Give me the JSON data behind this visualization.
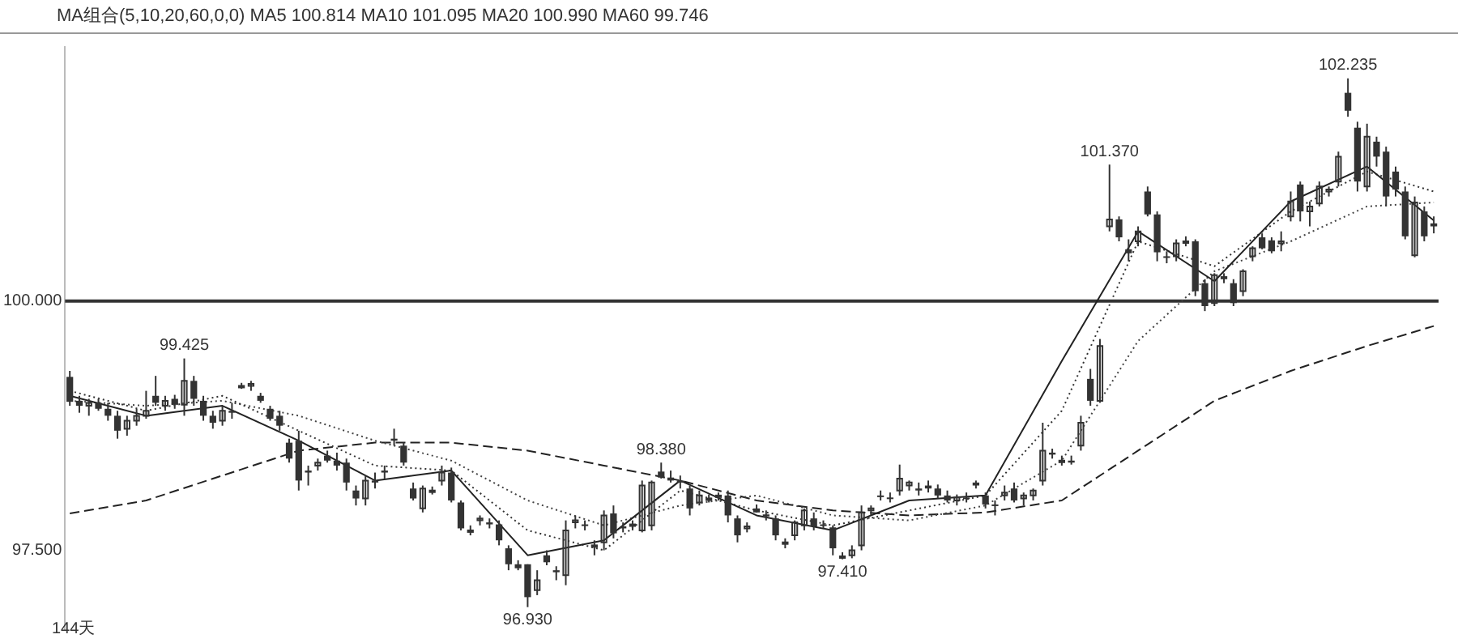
{
  "chart_data": {
    "type": "candlestick",
    "subtitle": "MA组合(5,10,20,60,0,0)  MA5 100.814  MA10 101.095  MA20 100.990  MA60 99.746",
    "color": "#333333",
    "categories": [
      null,
      null,
      null,
      null,
      null,
      null,
      null,
      null,
      null,
      null,
      null,
      null,
      null,
      null,
      null,
      null,
      null,
      null,
      null,
      null,
      null,
      null,
      null,
      null,
      null,
      null,
      null,
      null,
      null,
      null,
      null,
      null,
      null,
      null,
      null,
      null,
      null,
      null,
      null,
      null,
      null,
      null,
      null,
      null,
      null,
      null,
      null,
      null,
      null,
      null,
      null,
      null,
      null,
      null,
      null,
      null,
      null,
      null,
      null,
      null,
      null,
      null,
      null,
      null,
      null,
      null,
      null,
      null,
      null,
      null,
      null,
      null,
      null,
      null,
      null,
      null,
      null,
      null,
      null,
      null,
      null,
      null,
      null,
      null,
      null,
      null,
      null,
      null,
      null,
      null,
      null,
      null,
      null,
      null,
      null,
      null,
      null,
      null,
      null,
      null,
      null,
      null,
      null,
      null,
      null,
      null,
      null,
      null,
      null,
      null,
      null,
      null,
      null,
      null,
      null,
      null,
      null,
      null,
      null,
      null,
      null,
      null,
      null,
      null,
      null,
      null,
      null,
      null,
      null,
      null,
      null,
      null,
      null,
      null,
      null,
      null,
      null,
      null,
      null,
      null,
      null,
      null,
      null,
      null
    ],
    "ohlc": [
      [
        99.24,
        99.3,
        98.95,
        98.99
      ],
      [
        99.0,
        99.05,
        98.88,
        98.95
      ],
      [
        98.95,
        99.02,
        98.85,
        98.98
      ],
      [
        98.98,
        99.02,
        98.9,
        98.92
      ],
      [
        98.92,
        98.98,
        98.8,
        98.85
      ],
      [
        98.85,
        98.9,
        98.62,
        98.7
      ],
      [
        98.72,
        98.85,
        98.65,
        98.8
      ],
      [
        98.8,
        98.92,
        98.75,
        98.85
      ],
      [
        98.85,
        99.1,
        98.82,
        98.9
      ],
      [
        99.05,
        99.25,
        98.95,
        98.98
      ],
      [
        98.95,
        99.05,
        98.9,
        99.0
      ],
      [
        99.02,
        99.06,
        98.92,
        98.96
      ],
      [
        98.96,
        99.425,
        98.85,
        99.2
      ],
      [
        99.2,
        99.25,
        98.95,
        99.02
      ],
      [
        99.0,
        99.05,
        98.8,
        98.85
      ],
      [
        98.85,
        98.9,
        98.72,
        98.78
      ],
      [
        98.8,
        98.95,
        98.75,
        98.9
      ],
      [
        98.9,
        98.98,
        98.82,
        98.88
      ],
      [
        99.15,
        99.18,
        99.12,
        99.15
      ],
      [
        99.15,
        99.2,
        99.1,
        99.17
      ],
      [
        99.05,
        99.08,
        98.98,
        99.0
      ],
      [
        98.92,
        98.95,
        98.8,
        98.82
      ],
      [
        98.85,
        98.9,
        98.7,
        98.75
      ],
      [
        98.58,
        98.62,
        98.38,
        98.42
      ],
      [
        98.6,
        98.7,
        98.1,
        98.2
      ],
      [
        98.3,
        98.35,
        98.15,
        98.28
      ],
      [
        98.35,
        98.42,
        98.3,
        98.38
      ],
      [
        98.45,
        98.5,
        98.38,
        98.4
      ],
      [
        98.4,
        98.48,
        98.3,
        98.35
      ],
      [
        98.38,
        98.42,
        98.1,
        98.18
      ],
      [
        98.1,
        98.15,
        97.95,
        98.02
      ],
      [
        98.02,
        98.25,
        97.95,
        98.2
      ],
      [
        98.2,
        98.28,
        98.12,
        98.18
      ],
      [
        98.3,
        98.35,
        98.22,
        98.28
      ],
      [
        98.62,
        98.72,
        98.55,
        98.6
      ],
      [
        98.55,
        98.58,
        98.35,
        98.38
      ],
      [
        98.12,
        98.18,
        98.0,
        98.02
      ],
      [
        97.92,
        98.15,
        97.88,
        98.12
      ],
      [
        98.1,
        98.14,
        98.06,
        98.1
      ],
      [
        98.2,
        98.35,
        98.15,
        98.28
      ],
      [
        98.28,
        98.33,
        97.98,
        98.0
      ],
      [
        97.98,
        98.0,
        97.7,
        97.72
      ],
      [
        97.7,
        97.75,
        97.65,
        97.7
      ],
      [
        97.8,
        97.85,
        97.75,
        97.82
      ],
      [
        97.78,
        97.82,
        97.72,
        97.76
      ],
      [
        97.76,
        97.8,
        97.55,
        97.6
      ],
      [
        97.52,
        97.55,
        97.3,
        97.36
      ],
      [
        97.36,
        97.4,
        97.3,
        97.32
      ],
      [
        97.36,
        97.36,
        96.93,
        97.03
      ],
      [
        97.1,
        97.3,
        97.05,
        97.2
      ],
      [
        97.45,
        97.5,
        97.35,
        97.38
      ],
      [
        97.3,
        97.34,
        97.2,
        97.28
      ],
      [
        97.25,
        97.8,
        97.15,
        97.7
      ],
      [
        97.78,
        97.85,
        97.72,
        97.8
      ],
      [
        97.76,
        97.8,
        97.7,
        97.75
      ],
      [
        97.55,
        97.6,
        97.45,
        97.55
      ],
      [
        97.58,
        97.9,
        97.5,
        97.85
      ],
      [
        97.87,
        97.95,
        97.62,
        97.67
      ],
      [
        97.74,
        97.78,
        97.68,
        97.72
      ],
      [
        97.76,
        97.8,
        97.7,
        97.76
      ],
      [
        97.7,
        98.2,
        97.68,
        98.15
      ],
      [
        97.75,
        98.2,
        97.7,
        98.18
      ],
      [
        98.29,
        98.38,
        98.22,
        98.23
      ],
      [
        98.23,
        98.3,
        98.18,
        98.2
      ],
      [
        98.2,
        98.25,
        98.12,
        98.18
      ],
      [
        98.12,
        98.15,
        97.85,
        97.92
      ],
      [
        97.98,
        98.1,
        97.95,
        98.05
      ],
      [
        98.02,
        98.06,
        97.98,
        98.02
      ],
      [
        98.04,
        98.08,
        98.0,
        98.05
      ],
      [
        98.05,
        98.1,
        97.78,
        97.85
      ],
      [
        97.82,
        97.85,
        97.58,
        97.65
      ],
      [
        97.72,
        97.78,
        97.68,
        97.74
      ],
      [
        97.92,
        97.96,
        97.88,
        97.88
      ],
      [
        97.86,
        97.9,
        97.8,
        97.84
      ],
      [
        97.82,
        97.85,
        97.6,
        97.65
      ],
      [
        97.58,
        97.62,
        97.52,
        97.58
      ],
      [
        97.65,
        97.8,
        97.6,
        97.78
      ],
      [
        97.75,
        97.92,
        97.7,
        97.9
      ],
      [
        97.82,
        97.88,
        97.7,
        97.74
      ],
      [
        97.76,
        97.8,
        97.72,
        97.75
      ],
      [
        97.73,
        97.75,
        97.45,
        97.52
      ],
      [
        97.44,
        97.48,
        97.41,
        97.44
      ],
      [
        97.45,
        97.55,
        97.42,
        97.5
      ],
      [
        97.55,
        97.95,
        97.5,
        97.88
      ],
      [
        97.9,
        97.95,
        97.85,
        97.92
      ],
      [
        98.05,
        98.1,
        98.0,
        98.04
      ],
      [
        98.03,
        98.08,
        97.98,
        98.02
      ],
      [
        98.1,
        98.36,
        98.05,
        98.22
      ],
      [
        98.15,
        98.2,
        98.1,
        98.18
      ],
      [
        98.12,
        98.18,
        98.05,
        98.1
      ],
      [
        98.15,
        98.2,
        98.08,
        98.12
      ],
      [
        98.12,
        98.16,
        98.02,
        98.05
      ],
      [
        98.05,
        98.1,
        97.98,
        98.0
      ],
      [
        98.0,
        98.06,
        97.95,
        98.03
      ],
      [
        98.03,
        98.08,
        97.98,
        98.02
      ],
      [
        98.18,
        98.2,
        98.12,
        98.15
      ],
      [
        98.05,
        98.08,
        97.92,
        97.96
      ],
      [
        97.96,
        98.0,
        97.85,
        97.95
      ],
      [
        98.05,
        98.15,
        98.0,
        98.08
      ],
      [
        98.12,
        98.18,
        97.98,
        98.0
      ],
      [
        98.02,
        98.08,
        97.95,
        98.05
      ],
      [
        98.05,
        98.12,
        98.0,
        98.1
      ],
      [
        98.2,
        98.78,
        98.15,
        98.5
      ],
      [
        98.48,
        98.52,
        98.42,
        98.46
      ],
      [
        98.4,
        98.45,
        98.35,
        98.4
      ],
      [
        98.4,
        98.45,
        98.36,
        98.38
      ],
      [
        98.55,
        98.85,
        98.5,
        98.78
      ],
      [
        99.22,
        99.32,
        98.95,
        99.0
      ],
      [
        99.0,
        99.62,
        98.98,
        99.55
      ],
      [
        100.75,
        101.37,
        100.7,
        100.82
      ],
      [
        100.82,
        100.85,
        100.6,
        100.64
      ],
      [
        100.52,
        100.62,
        100.4,
        100.48
      ],
      [
        100.6,
        100.75,
        100.55,
        100.7
      ],
      [
        101.1,
        101.15,
        100.85,
        100.87
      ],
      [
        100.87,
        100.9,
        100.4,
        100.49
      ],
      [
        100.45,
        100.5,
        100.38,
        100.44
      ],
      [
        100.45,
        100.62,
        100.4,
        100.58
      ],
      [
        100.6,
        100.65,
        100.55,
        100.6
      ],
      [
        100.6,
        100.62,
        100.05,
        100.1
      ],
      [
        100.18,
        100.22,
        99.9,
        99.95
      ],
      [
        99.98,
        100.28,
        99.95,
        100.26
      ],
      [
        100.25,
        100.28,
        100.18,
        100.22
      ],
      [
        100.18,
        100.22,
        99.95,
        99.98
      ],
      [
        100.1,
        100.32,
        100.05,
        100.3
      ],
      [
        100.45,
        100.55,
        100.4,
        100.53
      ],
      [
        100.64,
        100.68,
        100.52,
        100.53
      ],
      [
        100.61,
        100.64,
        100.48,
        100.5
      ],
      [
        100.58,
        100.7,
        100.5,
        100.6
      ],
      [
        100.85,
        101.1,
        100.8,
        101.0
      ],
      [
        101.17,
        101.2,
        100.8,
        100.9
      ],
      [
        100.9,
        101.0,
        100.75,
        100.95
      ],
      [
        100.98,
        101.2,
        100.95,
        101.15
      ],
      [
        101.1,
        101.15,
        101.05,
        101.12
      ],
      [
        101.2,
        101.5,
        101.15,
        101.45
      ],
      [
        102.09,
        102.235,
        101.85,
        101.91
      ],
      [
        101.74,
        101.8,
        101.1,
        101.2
      ],
      [
        101.15,
        101.78,
        101.1,
        101.65
      ],
      [
        101.6,
        101.65,
        101.35,
        101.45
      ],
      [
        101.5,
        101.55,
        100.95,
        101.05
      ],
      [
        101.3,
        101.35,
        101.05,
        101.12
      ],
      [
        101.1,
        101.15,
        100.62,
        100.65
      ],
      [
        100.46,
        101.05,
        100.44,
        100.99
      ],
      [
        100.9,
        100.95,
        100.6,
        100.65
      ],
      [
        100.78,
        100.85,
        100.68,
        100.75
      ]
    ],
    "series": [
      {
        "type": "line",
        "color": "#222222",
        "line_style": "solid",
        "values": [
          99.05,
          null,
          null,
          null,
          null,
          null,
          null,
          null,
          98.85,
          null,
          null,
          null,
          null,
          null,
          null,
          null,
          98.95,
          null,
          null,
          null,
          null,
          null,
          null,
          null,
          98.6,
          null,
          null,
          null,
          null,
          null,
          null,
          null,
          98.2,
          null,
          null,
          null,
          null,
          null,
          null,
          null,
          98.3,
          null,
          null,
          null,
          null,
          null,
          null,
          null,
          97.45,
          null,
          null,
          null,
          null,
          null,
          null,
          null,
          97.6,
          null,
          null,
          null,
          null,
          null,
          null,
          null,
          98.2,
          null,
          null,
          null,
          null,
          null,
          null,
          null,
          97.85,
          null,
          null,
          null,
          null,
          null,
          null,
          null,
          97.7,
          null,
          null,
          null,
          null,
          null,
          null,
          null,
          98.0,
          null,
          null,
          null,
          null,
          null,
          null,
          null,
          98.05,
          null,
          null,
          null,
          null,
          null,
          null,
          null,
          99.4,
          null,
          null,
          null,
          null,
          null,
          null,
          null,
          100.7,
          null,
          null,
          null,
          null,
          null,
          null,
          null,
          100.2,
          null,
          null,
          null,
          null,
          null,
          null,
          null,
          101.0,
          null,
          null,
          null,
          null,
          null,
          null,
          null,
          101.35,
          null,
          null,
          null,
          null,
          null,
          null,
          100.81
        ]
      },
      {
        "type": "line",
        "color": "#333333",
        "line_style": "dotted",
        "values": [
          99.1,
          null,
          null,
          null,
          null,
          null,
          null,
          null,
          98.9,
          null,
          null,
          null,
          null,
          null,
          null,
          null,
          99.05,
          null,
          null,
          null,
          null,
          null,
          null,
          null,
          98.7,
          null,
          null,
          null,
          null,
          null,
          null,
          null,
          98.35,
          null,
          null,
          null,
          null,
          null,
          null,
          null,
          98.3,
          null,
          null,
          null,
          null,
          null,
          null,
          null,
          97.7,
          null,
          null,
          null,
          null,
          null,
          null,
          null,
          97.5,
          null,
          null,
          null,
          null,
          null,
          null,
          null,
          98.1,
          null,
          null,
          null,
          null,
          null,
          null,
          null,
          97.9,
          null,
          null,
          null,
          null,
          null,
          null,
          null,
          97.75,
          null,
          null,
          null,
          null,
          null,
          null,
          null,
          97.9,
          null,
          null,
          null,
          null,
          null,
          null,
          null,
          98.05,
          null,
          null,
          null,
          null,
          null,
          null,
          null,
          98.9,
          null,
          null,
          null,
          null,
          null,
          null,
          null,
          100.6,
          null,
          null,
          null,
          null,
          null,
          null,
          null,
          100.35,
          null,
          null,
          null,
          null,
          null,
          null,
          null,
          100.9,
          null,
          null,
          null,
          null,
          null,
          null,
          null,
          101.3,
          null,
          null,
          null,
          null,
          null,
          null,
          101.1
        ]
      },
      {
        "type": "line",
        "color": "#444444",
        "line_style": "dotted",
        "values": [
          99.0,
          null,
          null,
          null,
          null,
          null,
          null,
          null,
          98.95,
          null,
          null,
          null,
          null,
          null,
          null,
          null,
          99.0,
          null,
          null,
          null,
          null,
          null,
          null,
          null,
          98.85,
          null,
          null,
          null,
          null,
          null,
          null,
          null,
          98.6,
          null,
          null,
          null,
          null,
          null,
          null,
          null,
          98.4,
          null,
          null,
          null,
          null,
          null,
          null,
          null,
          98.0,
          null,
          null,
          null,
          null,
          null,
          null,
          null,
          97.75,
          null,
          null,
          null,
          null,
          null,
          null,
          null,
          97.95,
          null,
          null,
          null,
          null,
          null,
          null,
          null,
          98.05,
          null,
          null,
          null,
          null,
          null,
          null,
          null,
          97.85,
          null,
          null,
          null,
          null,
          null,
          null,
          null,
          97.8,
          null,
          null,
          null,
          null,
          null,
          null,
          null,
          97.95,
          null,
          null,
          null,
          null,
          null,
          null,
          null,
          98.4,
          null,
          null,
          null,
          null,
          null,
          null,
          null,
          99.6,
          null,
          null,
          null,
          null,
          null,
          null,
          null,
          100.3,
          null,
          null,
          null,
          null,
          null,
          null,
          null,
          100.6,
          null,
          null,
          null,
          null,
          null,
          null,
          null,
          100.95,
          null,
          null,
          null,
          null,
          null,
          null,
          100.99
        ]
      },
      {
        "type": "line",
        "color": "#222222",
        "line_style": "dashed",
        "values": [
          97.87,
          null,
          null,
          null,
          null,
          null,
          null,
          null,
          98.0,
          null,
          null,
          null,
          null,
          null,
          null,
          null,
          98.25,
          null,
          null,
          null,
          null,
          null,
          null,
          null,
          98.5,
          null,
          null,
          null,
          null,
          null,
          null,
          null,
          98.58,
          null,
          null,
          null,
          null,
          null,
          null,
          null,
          98.58,
          null,
          null,
          null,
          null,
          null,
          null,
          null,
          98.5,
          null,
          null,
          null,
          null,
          null,
          null,
          null,
          98.35,
          null,
          null,
          null,
          null,
          null,
          null,
          null,
          98.2,
          null,
          null,
          null,
          null,
          null,
          null,
          null,
          98.0,
          null,
          null,
          null,
          null,
          null,
          null,
          null,
          97.9,
          null,
          null,
          null,
          null,
          null,
          null,
          null,
          97.85,
          null,
          null,
          null,
          null,
          null,
          null,
          null,
          97.88,
          null,
          null,
          null,
          null,
          null,
          null,
          null,
          98.0,
          null,
          null,
          null,
          null,
          null,
          null,
          null,
          98.5,
          null,
          null,
          null,
          null,
          null,
          null,
          null,
          99.0,
          null,
          null,
          null,
          null,
          null,
          null,
          null,
          99.3,
          null,
          null,
          null,
          null,
          null,
          null,
          null,
          99.55,
          null,
          null,
          null,
          null,
          null,
          null,
          99.75
        ]
      }
    ],
    "ylim": [
      96.7,
      102.55
    ],
    "yticks": [
      {
        "value": 97.5,
        "label": "97.500"
      },
      {
        "value": 100,
        "label": "100.000"
      }
    ],
    "tick_labels": "y",
    "grid": false,
    "legend": false,
    "marker": "none",
    "ref_lines": [
      {
        "axis": "y",
        "value": 100,
        "color": "#333333"
      }
    ],
    "annotations": [
      {
        "text": "99.425",
        "y": 99.425
      },
      {
        "text": "96.930",
        "y": 96.93
      },
      {
        "text": "98.380",
        "y": 98.38
      },
      {
        "text": "97.410",
        "y": 97.41
      },
      {
        "text": "101.370",
        "y": 101.37
      },
      {
        "text": "102.235",
        "y": 102.235
      },
      "144天"
    ]
  }
}
